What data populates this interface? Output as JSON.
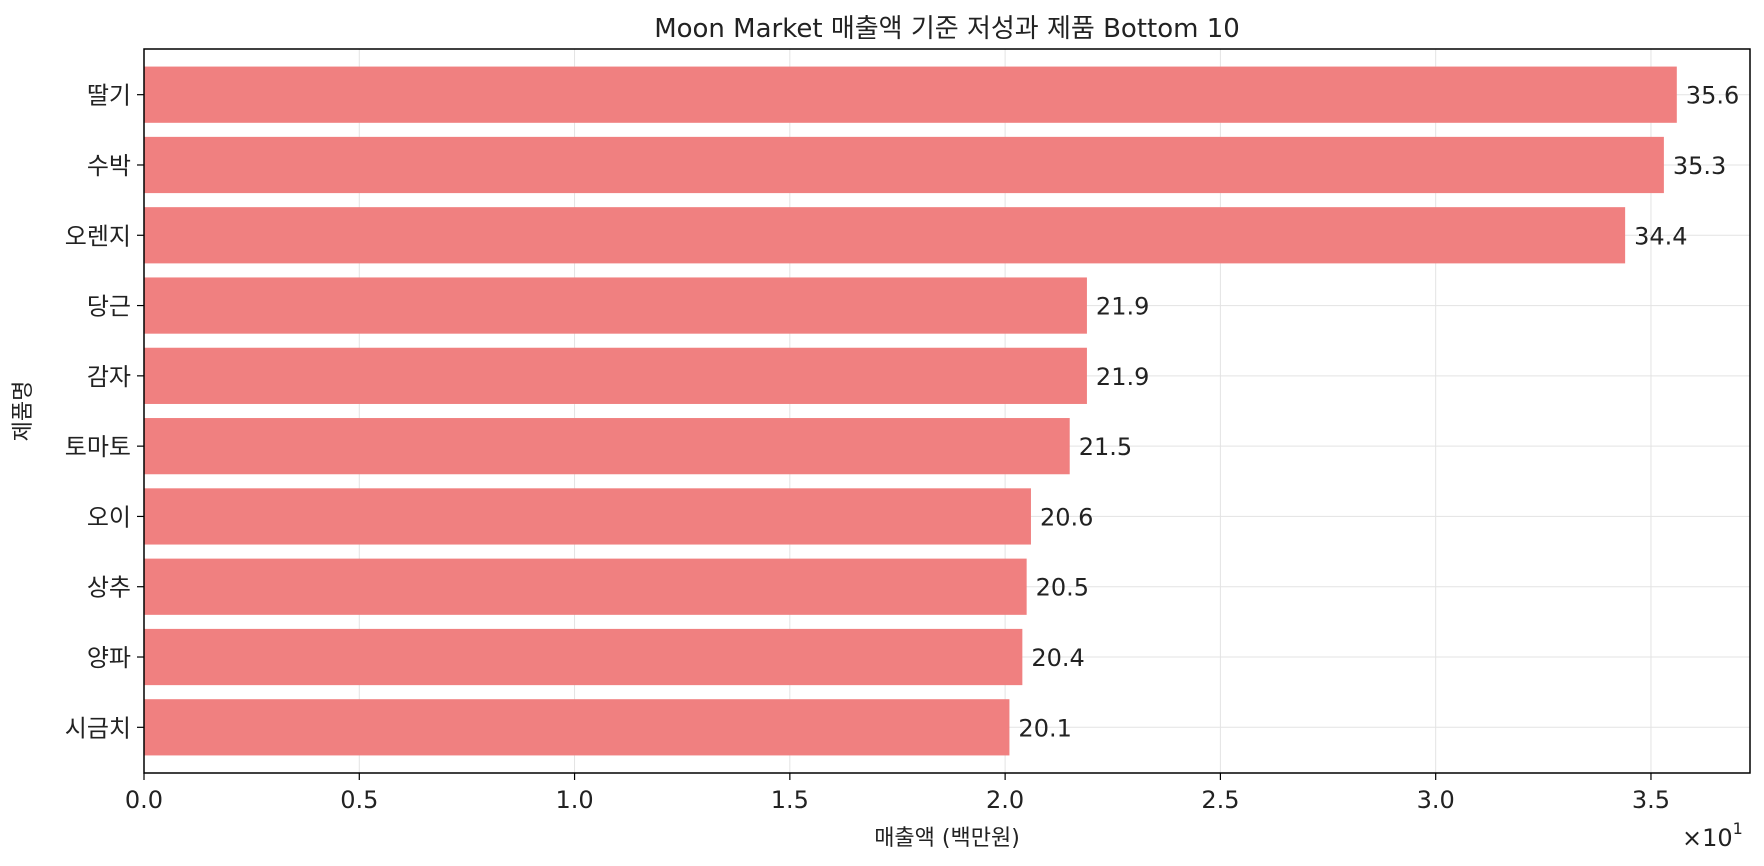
{
  "chart_data": {
    "type": "bar",
    "orientation": "horizontal",
    "title": "Moon Market 매출액 기준 저성과 제품 Bottom 10",
    "xlabel": "매출액 (백만원)",
    "ylabel": "제품명",
    "x_scale_base": "×10",
    "x_scale_exponent": "1",
    "x_tick_labels": [
      "0.0",
      "0.5",
      "1.0",
      "1.5",
      "2.0",
      "2.5",
      "3.0",
      "3.5"
    ],
    "xlim": [
      0,
      37.3
    ],
    "grid": true,
    "bar_color": "#f08080",
    "categories": [
      "딸기",
      "수박",
      "오렌지",
      "당근",
      "감자",
      "토마토",
      "오이",
      "상추",
      "양파",
      "시금치"
    ],
    "values": [
      35.6,
      35.3,
      34.4,
      21.9,
      21.9,
      21.5,
      20.6,
      20.5,
      20.4,
      20.1
    ],
    "value_labels": [
      "35.6",
      "35.3",
      "34.4",
      "21.9",
      "21.9",
      "21.5",
      "20.6",
      "20.5",
      "20.4",
      "20.1"
    ]
  }
}
